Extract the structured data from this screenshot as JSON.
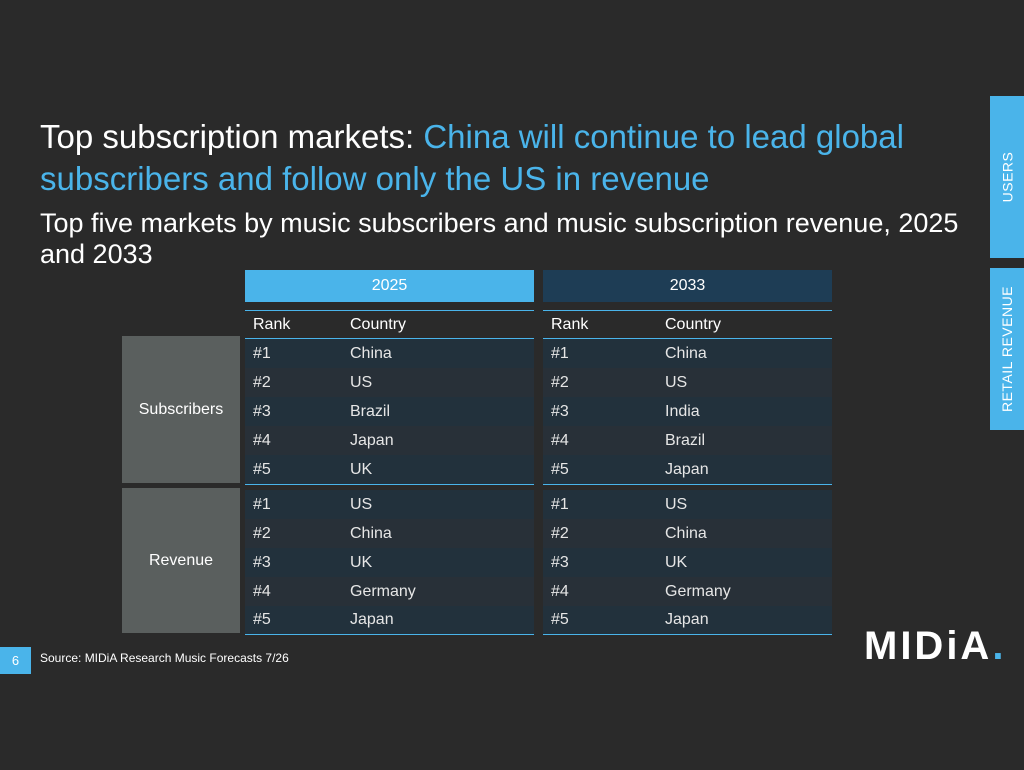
{
  "title": {
    "lead": "Top subscription markets: ",
    "highlight": "China will continue to lead global subscribers and follow only the US in revenue"
  },
  "subtitle": "Top five markets by music subscribers and music subscription revenue, 2025 and 2033",
  "side_tabs": [
    "USERS",
    "RETAIL REVENUE"
  ],
  "groups": [
    "Subscribers",
    "Revenue"
  ],
  "columns": {
    "rank": "Rank",
    "country": "Country"
  },
  "tables": [
    {
      "year": "2025",
      "subscribers": [
        {
          "rank": "#1",
          "country": "China"
        },
        {
          "rank": "#2",
          "country": "US"
        },
        {
          "rank": "#3",
          "country": "Brazil"
        },
        {
          "rank": "#4",
          "country": "Japan"
        },
        {
          "rank": "#5",
          "country": "UK"
        }
      ],
      "revenue": [
        {
          "rank": "#1",
          "country": "US"
        },
        {
          "rank": "#2",
          "country": "China"
        },
        {
          "rank": "#3",
          "country": "UK"
        },
        {
          "rank": "#4",
          "country": "Germany"
        },
        {
          "rank": "#5",
          "country": "Japan"
        }
      ]
    },
    {
      "year": "2033",
      "subscribers": [
        {
          "rank": "#1",
          "country": "China"
        },
        {
          "rank": "#2",
          "country": "US"
        },
        {
          "rank": "#3",
          "country": "India"
        },
        {
          "rank": "#4",
          "country": "Brazil"
        },
        {
          "rank": "#5",
          "country": "Japan"
        }
      ],
      "revenue": [
        {
          "rank": "#1",
          "country": "US"
        },
        {
          "rank": "#2",
          "country": "China"
        },
        {
          "rank": "#3",
          "country": "UK"
        },
        {
          "rank": "#4",
          "country": "Germany"
        },
        {
          "rank": "#5",
          "country": "Japan"
        }
      ]
    }
  ],
  "page_number": "6",
  "source": "Source: MIDiA Research Music Forecasts 7/26",
  "logo": {
    "text": "MIDiA",
    "dot": "."
  },
  "colors": {
    "background": "#2a2a2a",
    "accent": "#4ab4ea",
    "header_2033": "#1e3d55",
    "group_label": "#5a5f5e"
  }
}
